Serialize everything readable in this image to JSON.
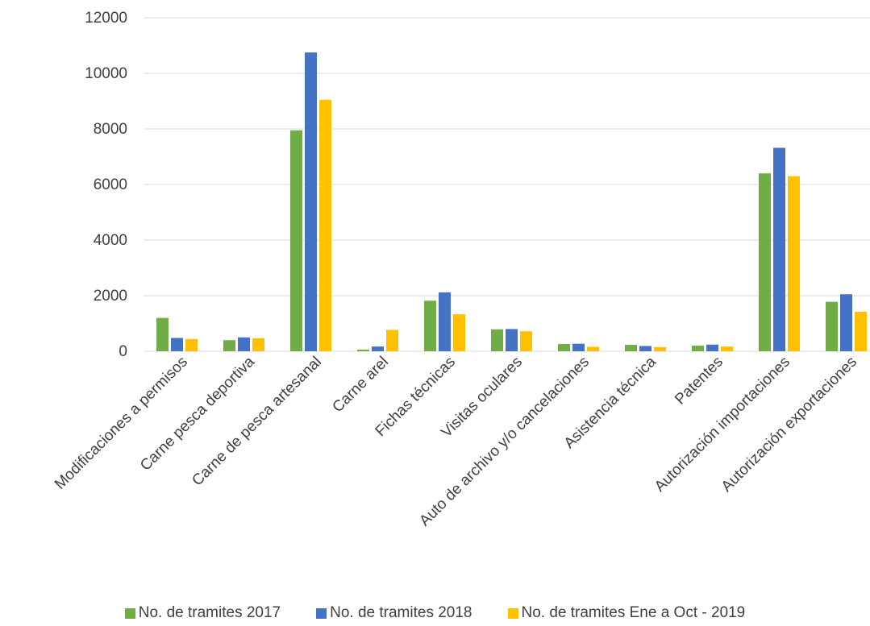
{
  "chart_data": {
    "type": "bar",
    "categories": [
      "Modificaciones a permisos",
      "Carne pesca deportiva",
      "Carne de pesca artesanal",
      "Carne arel",
      "Fichas técnicas",
      "Visitas oculares",
      "Auto de archivo y/o cancelaciones",
      "Asistencia técnica",
      "Patentes",
      "Autorización importaciones",
      "Autorización exportaciones"
    ],
    "series": [
      {
        "name": "No. de tramites 2017",
        "color": "#70ad47",
        "values": [
          1200,
          400,
          7950,
          60,
          1820,
          790,
          260,
          230,
          200,
          6400,
          1780
        ]
      },
      {
        "name": "No. de tramites 2018",
        "color": "#4472c4",
        "values": [
          480,
          500,
          10750,
          170,
          2120,
          800,
          270,
          190,
          240,
          7320,
          2050
        ]
      },
      {
        "name": "No. de tramites Ene a Oct - 2019",
        "color": "#ffc000",
        "values": [
          440,
          470,
          9050,
          770,
          1330,
          720,
          160,
          150,
          170,
          6300,
          1420
        ]
      }
    ],
    "y_ticks": [
      "0",
      "2000",
      "4000",
      "6000",
      "8000",
      "10000",
      "12000"
    ],
    "ylim": [
      0,
      12000
    ],
    "grid": true,
    "legend_position": "bottom"
  }
}
